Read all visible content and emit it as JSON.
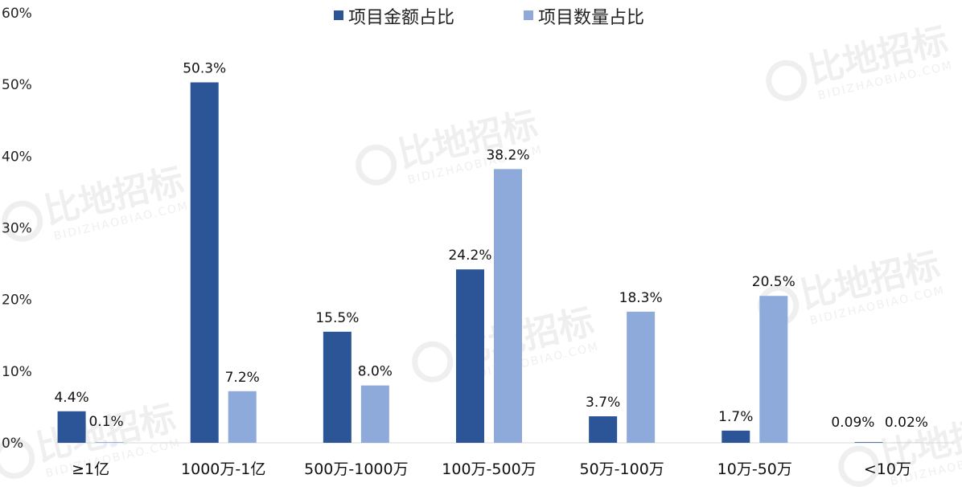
{
  "chart_data": {
    "type": "bar",
    "categories": [
      "≥1亿",
      "1000万-1亿",
      "500万-1000万",
      "100万-500万",
      "50万-100万",
      "10万-50万",
      "<10万"
    ],
    "series": [
      {
        "name": "项目金额占比",
        "values": [
          4.4,
          50.3,
          15.5,
          24.2,
          3.7,
          1.7,
          0.09
        ],
        "labels": [
          "4.4%",
          "50.3%",
          "15.5%",
          "24.2%",
          "3.7%",
          "1.7%",
          "0.09%"
        ],
        "color": "#2b5597"
      },
      {
        "name": "项目数量占比",
        "values": [
          0.1,
          7.2,
          8.0,
          38.2,
          18.3,
          20.5,
          0.02
        ],
        "labels": [
          "0.1%",
          "7.2%",
          "8.0%",
          "38.2%",
          "18.3%",
          "20.5%",
          "0.02%"
        ],
        "color": "#8eaadb"
      }
    ],
    "y_ticks": [
      "0%",
      "10%",
      "20%",
      "30%",
      "40%",
      "50%",
      "60%"
    ],
    "ylim": [
      0,
      60
    ],
    "grid": false,
    "legend_position": "top-center",
    "xlabel": "",
    "ylabel": "",
    "title": ""
  },
  "watermark": {
    "brand": "比地招标",
    "url": "BIDIZHAOBIAO.COM"
  }
}
